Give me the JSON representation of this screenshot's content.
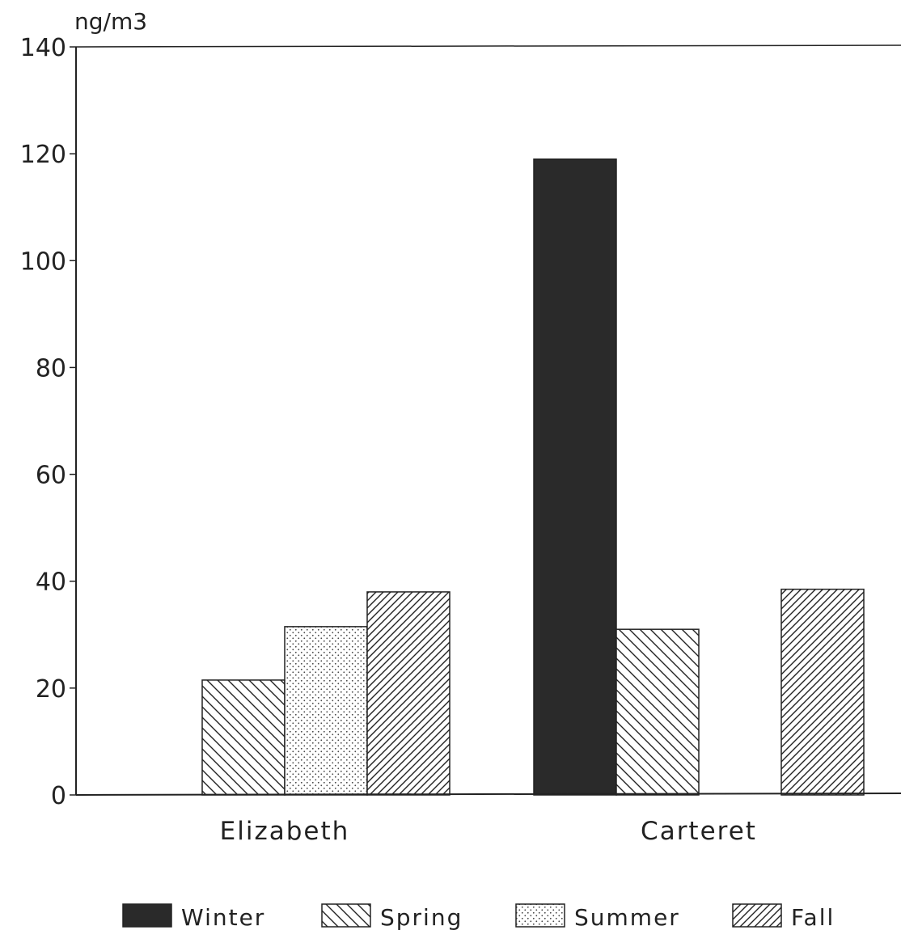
{
  "chart_data": {
    "type": "bar",
    "ylabel": "ng/m3",
    "ylim": [
      0,
      140
    ],
    "yticks": [
      0,
      20,
      40,
      60,
      80,
      100,
      120,
      140
    ],
    "categories": [
      "Elizabeth",
      "Carteret"
    ],
    "series": [
      {
        "name": "Winter",
        "pattern": "solid",
        "color": "#2a2a2a",
        "values": [
          0,
          119
        ]
      },
      {
        "name": "Spring",
        "pattern": "backslash-hatch",
        "color": "#222222",
        "values": [
          21.5,
          31
        ]
      },
      {
        "name": "Summer",
        "pattern": "dots",
        "color": "#222222",
        "values": [
          31.5,
          0
        ]
      },
      {
        "name": "Fall",
        "pattern": "slash-hatch",
        "color": "#222222",
        "values": [
          38,
          38.5
        ]
      }
    ],
    "grid": false,
    "legend": "bottom"
  }
}
